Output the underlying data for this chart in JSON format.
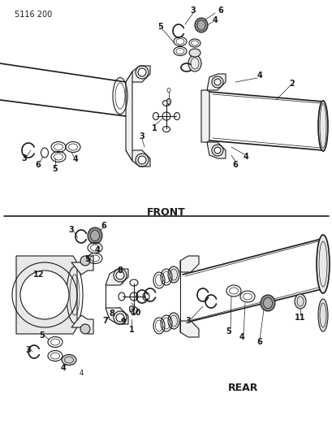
{
  "page_id": "5116 200",
  "bg": "#ffffff",
  "lc": "#1a1a1a",
  "front_label": "FRONT",
  "rear_label": "REAR",
  "fig_w": 4.1,
  "fig_h": 5.33,
  "dpi": 100
}
